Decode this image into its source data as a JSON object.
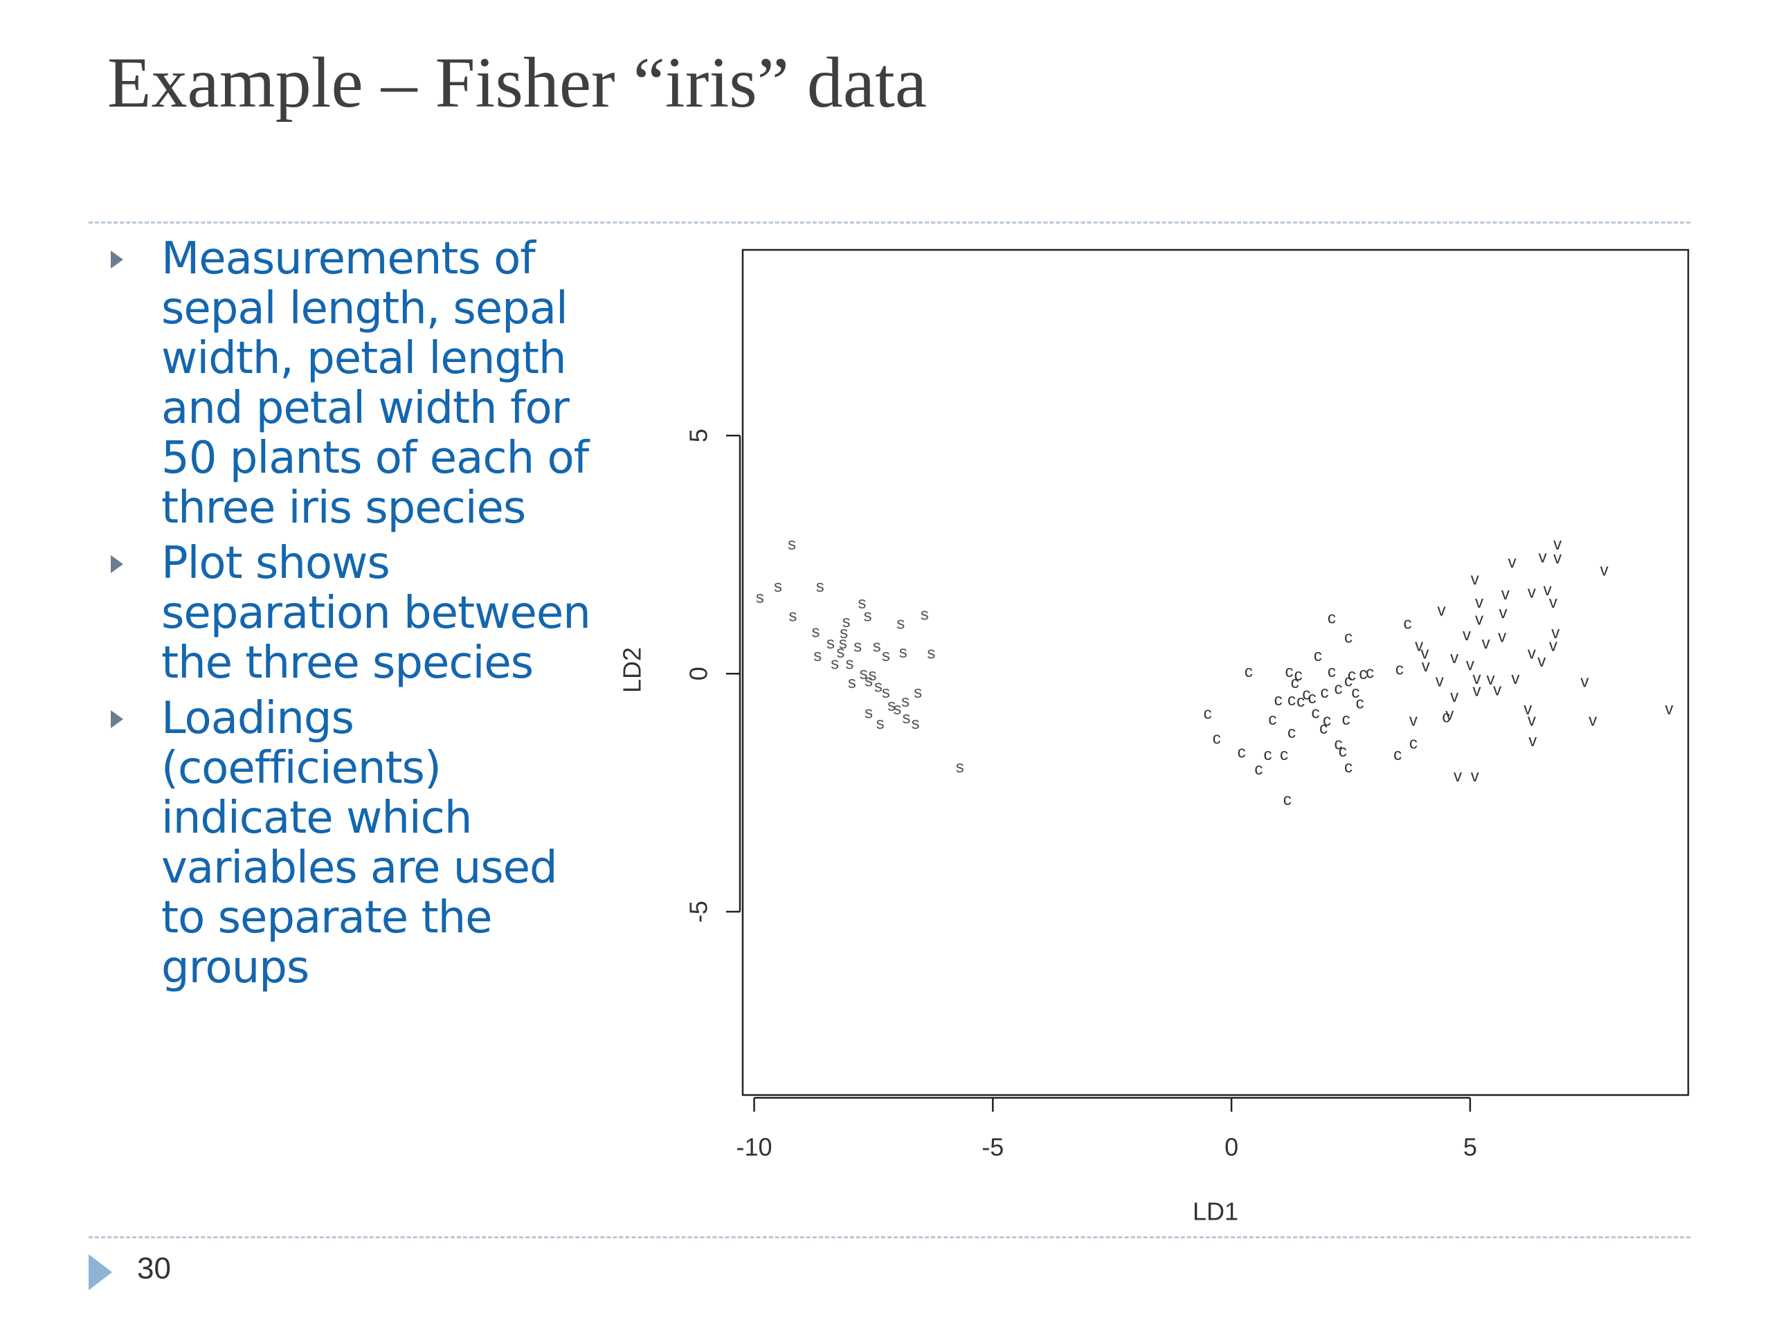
{
  "slide": {
    "title": "Example – Fisher “iris” data",
    "bullets": [
      "Measurements of sepal length, sepal width, petal length and petal width for 50 plants of each of three iris species",
      "Plot shows separation between the three species",
      "Loadings (coefficients) indicate which variables are used to separate the groups"
    ],
    "page_number": "30"
  },
  "chart_data": {
    "type": "scatter",
    "x_label": "LD1",
    "y_label": "LD2",
    "xlim": [
      -10.24,
      9.57
    ],
    "ylim": [
      -8.85,
      8.9
    ],
    "xticks": [
      -10,
      -5,
      0,
      5
    ],
    "yticks": [
      -5,
      0,
      5
    ],
    "series": [
      {
        "marker": "s",
        "color": "#555555",
        "x": [
          -9.21,
          -9.88,
          -9.5,
          -8.62,
          -9.19,
          -7.74,
          -7.62,
          -6.43,
          -6.93,
          -8.07,
          -8.12,
          -8.71,
          -8.4,
          -8.14,
          -7.83,
          -7.43,
          -7.24,
          -6.88,
          -6.29,
          -8.67,
          -8.31,
          -8.0,
          -7.71,
          -7.95,
          -7.6,
          -7.4,
          -7.24,
          -6.57,
          -6.83,
          -7.0,
          -7.12,
          -7.6,
          -7.36,
          -6.81,
          -6.62,
          -5.69,
          -8.19,
          -7.52
        ],
        "values": [
          2.7,
          1.58,
          1.81,
          1.81,
          1.19,
          1.46,
          1.19,
          1.22,
          1.03,
          1.07,
          0.84,
          0.86,
          0.62,
          0.62,
          0.55,
          0.55,
          0.36,
          0.43,
          0.41,
          0.36,
          0.19,
          0.19,
          -0.02,
          -0.21,
          -0.17,
          -0.29,
          -0.41,
          -0.41,
          -0.6,
          -0.76,
          -0.69,
          -0.84,
          -1.07,
          -0.95,
          -1.07,
          -1.98,
          0.43,
          -0.05
        ]
      },
      {
        "marker": "c",
        "color": "#333333",
        "x": [
          0.36,
          -0.5,
          -0.31,
          0.21,
          0.57,
          0.76,
          1.1,
          1.17,
          0.86,
          0.98,
          1.26,
          1.45,
          1.33,
          1.21,
          1.4,
          1.26,
          1.57,
          1.76,
          1.81,
          2.1,
          2.45,
          1.95,
          2.1,
          2.0,
          1.93,
          2.24,
          2.45,
          2.4,
          2.6,
          2.69,
          2.24,
          2.33,
          2.45,
          2.76,
          2.9,
          3.52,
          3.69,
          3.48,
          3.81,
          4.5,
          1.69,
          2.52
        ],
        "values": [
          0.02,
          -0.86,
          -1.38,
          -1.67,
          -2.03,
          -1.72,
          -1.72,
          -2.67,
          -0.98,
          -0.57,
          -0.57,
          -0.6,
          -0.21,
          0.02,
          -0.05,
          -1.26,
          -0.45,
          -0.84,
          0.36,
          1.15,
          0.74,
          -0.41,
          0.02,
          -1.0,
          -1.17,
          -0.33,
          -0.17,
          -0.98,
          -0.41,
          -0.64,
          -1.5,
          -1.65,
          -1.98,
          -0.02,
          0,
          0.07,
          1.03,
          -1.72,
          -1.48,
          -0.93,
          -0.53,
          -0.05
        ]
      },
      {
        "marker": "v",
        "color": "#333333",
        "x": [
          4.4,
          5.1,
          5.88,
          6.52,
          6.83,
          6.83,
          7.81,
          5.19,
          5.74,
          6.29,
          6.62,
          6.74,
          5.19,
          5.69,
          4.93,
          5.33,
          5.67,
          6.79,
          3.93,
          4.05,
          4.07,
          4.67,
          5.0,
          6.29,
          6.5,
          6.74,
          4.36,
          5.14,
          5.43,
          5.95,
          7.4,
          4.67,
          5.14,
          5.57,
          6.21,
          6.29,
          7.57,
          9.17,
          3.81,
          6.31,
          4.74,
          5.1,
          4.57
        ],
        "values": [
          1.31,
          1.96,
          2.32,
          2.43,
          2.7,
          2.41,
          2.15,
          1.48,
          1.65,
          1.69,
          1.74,
          1.48,
          1.12,
          1.26,
          0.79,
          0.62,
          0.76,
          0.84,
          0.57,
          0.41,
          0.14,
          0.31,
          0.17,
          0.41,
          0.24,
          0.57,
          -0.17,
          -0.12,
          -0.14,
          -0.12,
          -0.19,
          -0.5,
          -0.38,
          -0.36,
          -0.76,
          -1.0,
          -1.0,
          -0.76,
          -1.0,
          -1.43,
          -2.17,
          -2.17,
          -0.88
        ]
      }
    ]
  }
}
